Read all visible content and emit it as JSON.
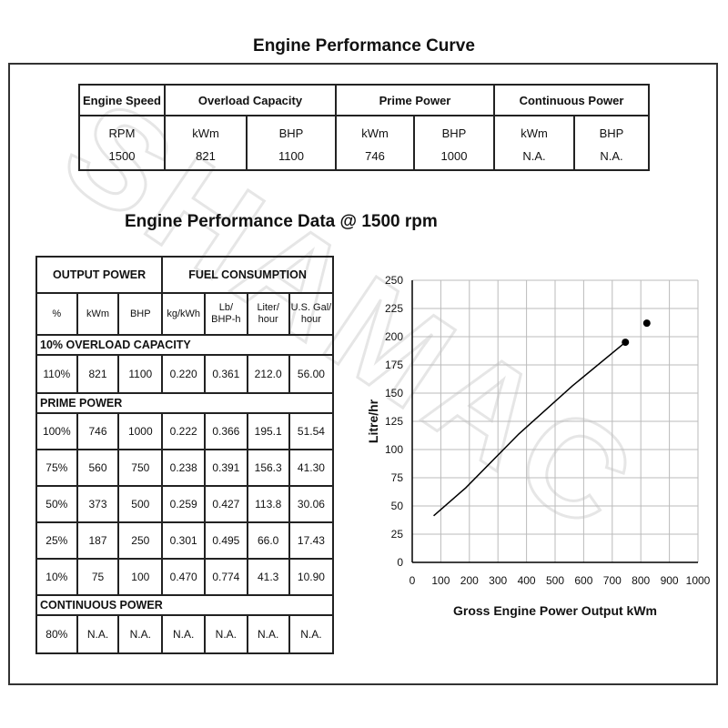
{
  "title": "Engine Performance Curve",
  "watermark_text": "SHAMAC",
  "rating_table": {
    "headers": [
      "Engine Speed",
      "Overload Capacity",
      "Prime Power",
      "Continuous Power"
    ],
    "units": [
      "RPM",
      "kWm",
      "BHP",
      "kWm",
      "BHP",
      "kWm",
      "BHP"
    ],
    "values": [
      "1500",
      "821",
      "1100",
      "746",
      "1000",
      "N.A.",
      "N.A."
    ]
  },
  "perf_title": "Engine Performance Data @ 1500 rpm",
  "perf_table": {
    "group_headers": [
      "OUTPUT POWER",
      "FUEL CONSUMPTION"
    ],
    "col_headers": [
      "%",
      "kWm",
      "BHP",
      "kg/kWh",
      "Lb/\nBHP-h",
      "Liter/\nhour",
      "U.S. Gal/\nhour"
    ],
    "sections": [
      {
        "label": "10% OVERLOAD CAPACITY",
        "rows": [
          [
            "110%",
            "821",
            "1100",
            "0.220",
            "0.361",
            "212.0",
            "56.00"
          ]
        ]
      },
      {
        "label": "PRIME POWER",
        "rows": [
          [
            "100%",
            "746",
            "1000",
            "0.222",
            "0.366",
            "195.1",
            "51.54"
          ],
          [
            "75%",
            "560",
            "750",
            "0.238",
            "0.391",
            "156.3",
            "41.30"
          ],
          [
            "50%",
            "373",
            "500",
            "0.259",
            "0.427",
            "113.8",
            "30.06"
          ],
          [
            "25%",
            "187",
            "250",
            "0.301",
            "0.495",
            "66.0",
            "17.43"
          ],
          [
            "10%",
            "75",
            "100",
            "0.470",
            "0.774",
            "41.3",
            "10.90"
          ]
        ]
      },
      {
        "label": "CONTINUOUS POWER",
        "rows": [
          [
            "80%",
            "N.A.",
            "N.A.",
            "N.A.",
            "N.A.",
            "N.A.",
            "N.A."
          ]
        ]
      }
    ]
  },
  "chart_data": {
    "type": "line",
    "title": "",
    "xlabel": "Gross Engine Power Output kWm",
    "ylabel": "Litre/hr",
    "xlim": [
      0,
      1000
    ],
    "ylim": [
      0,
      250
    ],
    "xticks": [
      0,
      100,
      200,
      300,
      400,
      500,
      600,
      700,
      800,
      900,
      1000
    ],
    "yticks": [
      0,
      25,
      50,
      75,
      100,
      125,
      150,
      175,
      200,
      225,
      250
    ],
    "grid": true,
    "series": [
      {
        "x": [
          75,
          187,
          373,
          560,
          746
        ],
        "y": [
          41.3,
          66.0,
          113.8,
          156.3,
          195.1
        ]
      }
    ],
    "markers": [
      {
        "x": 746,
        "y": 195.1
      },
      {
        "x": 821,
        "y": 212.0
      }
    ],
    "line_color": "#000000",
    "grid_color": "#bbbbbb"
  }
}
